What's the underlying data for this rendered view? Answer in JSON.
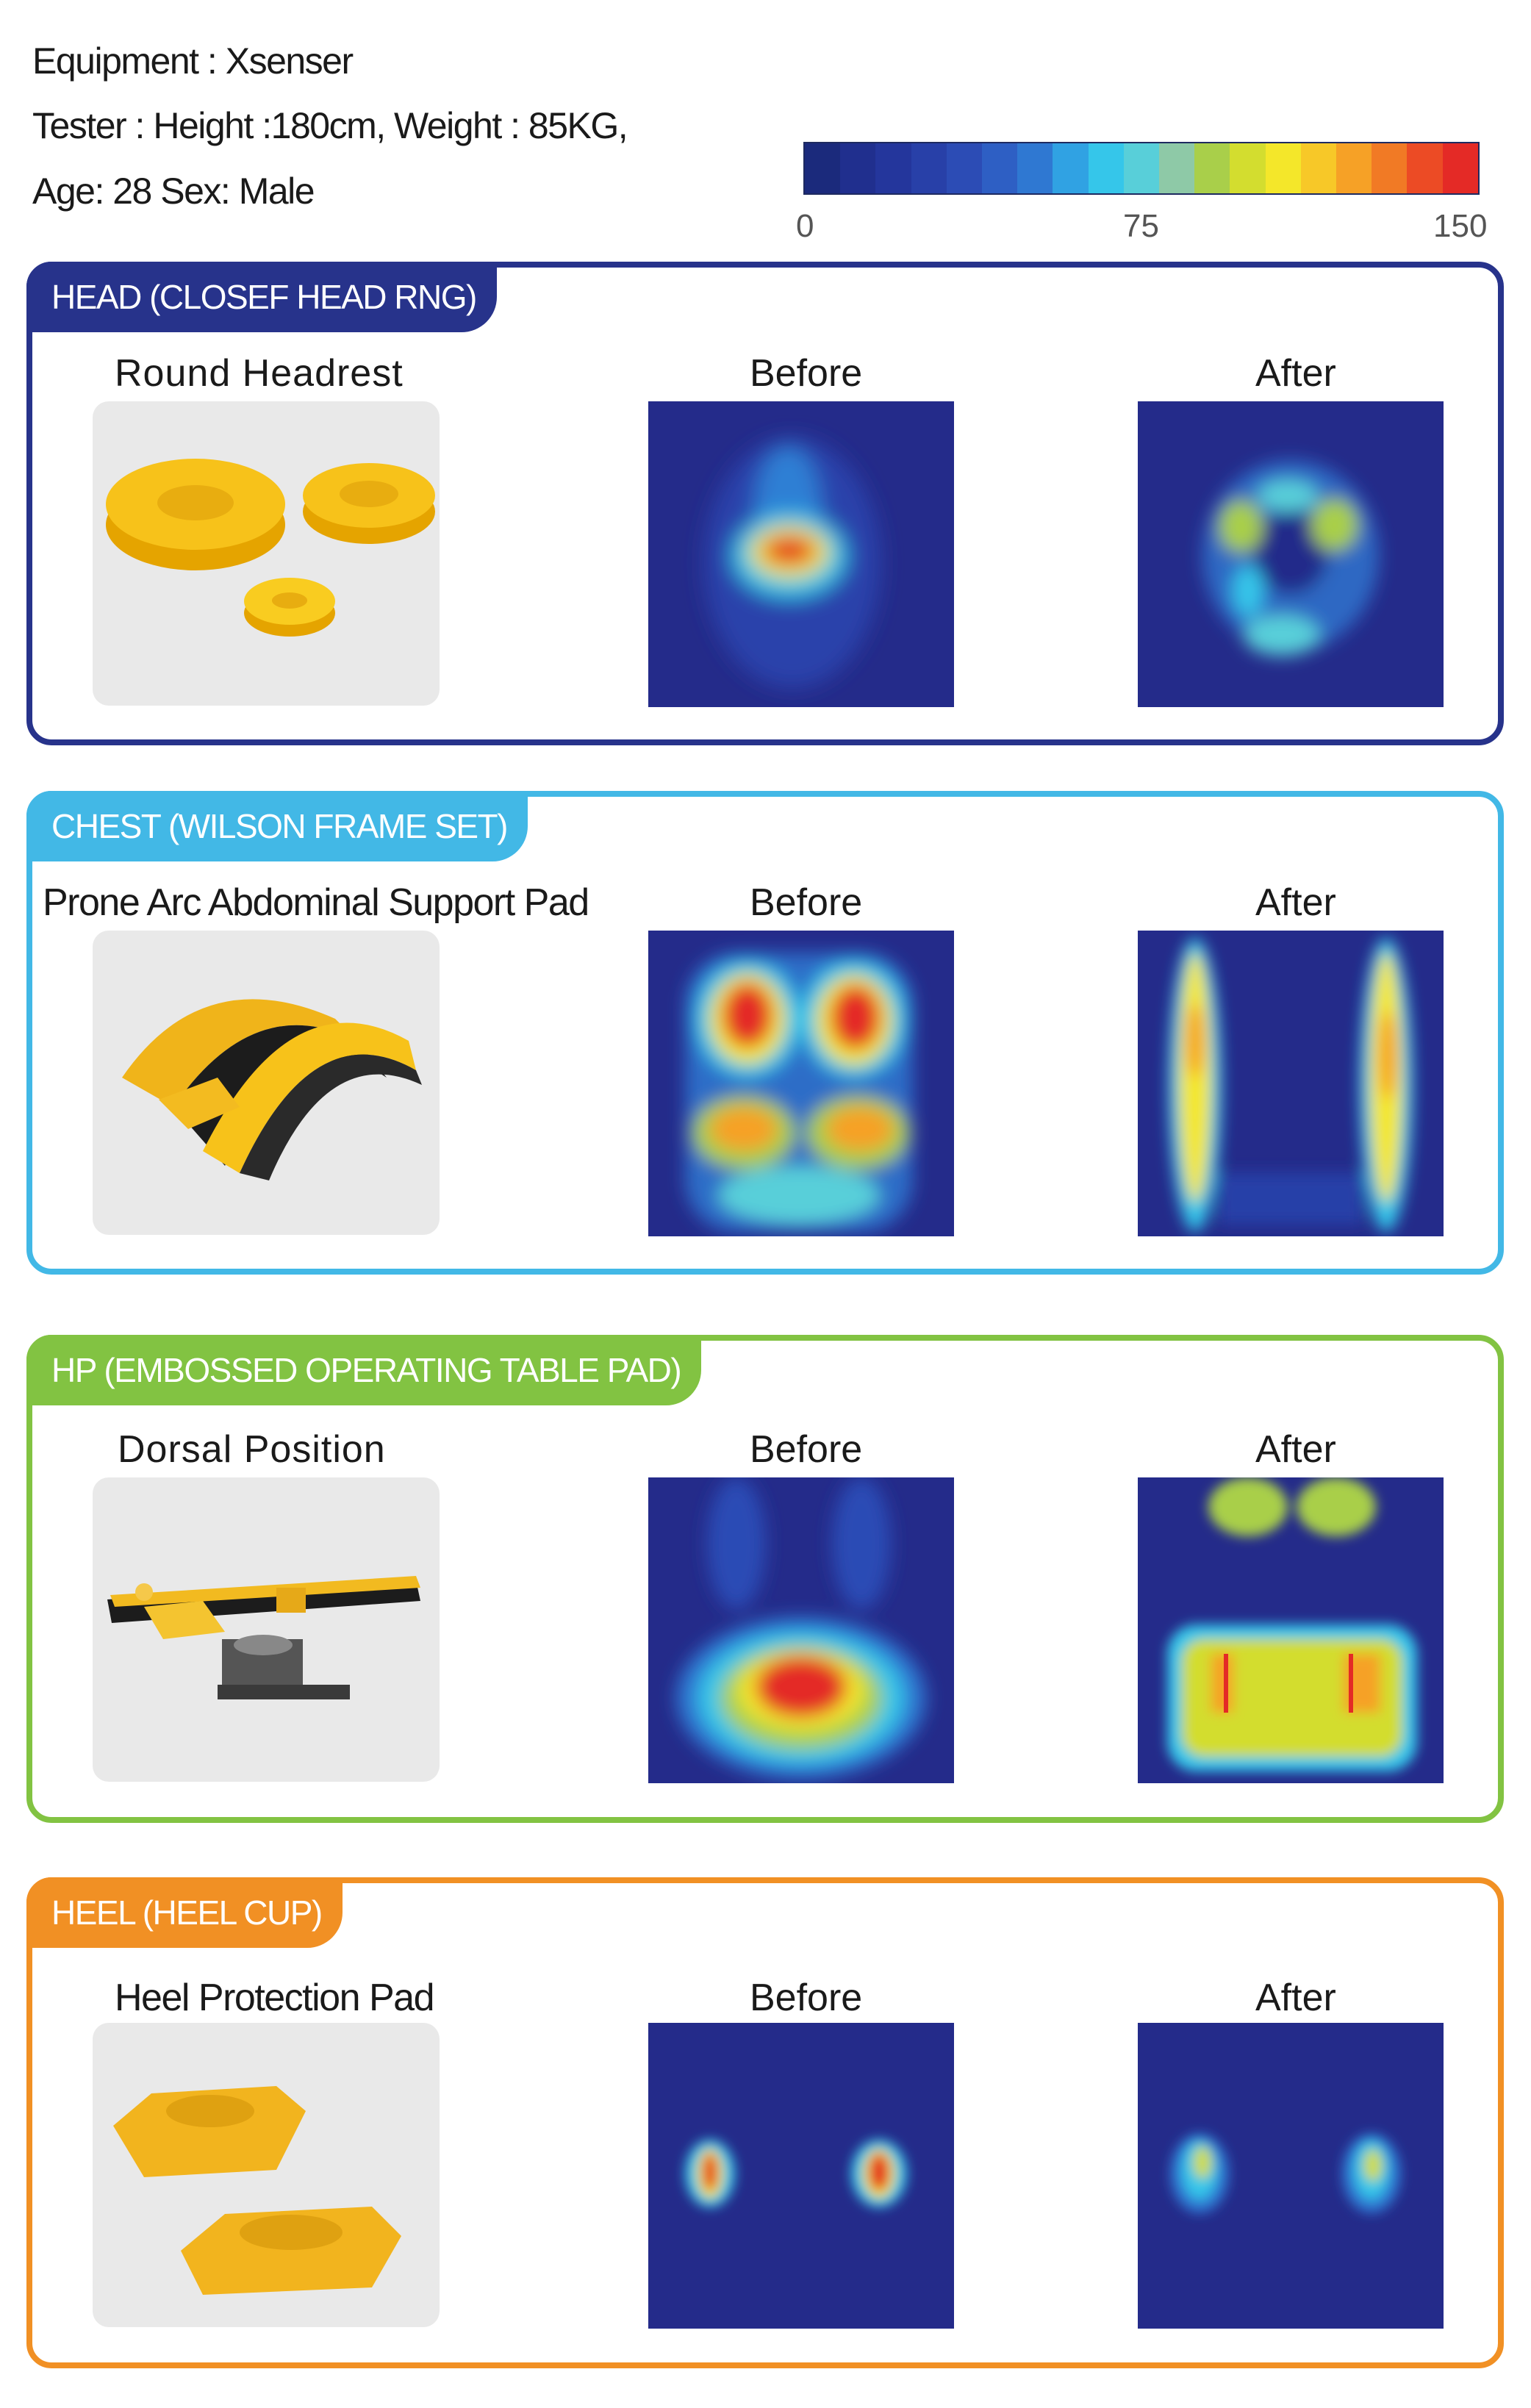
{
  "header": {
    "line1": "Equipment : Xsenser",
    "line2": "Tester : Height :180cm, Weight : 85KG,",
    "line3": "Age: 28 Sex: Male"
  },
  "color_scale": {
    "min_label": "0",
    "mid_label": "75",
    "max_label": "150",
    "colors": [
      "#1b2a7c",
      "#202f8e",
      "#24369c",
      "#2840a8",
      "#2c4cb5",
      "#2e5fc4",
      "#2f78d2",
      "#30a2e3",
      "#35c6ea",
      "#58cfd9",
      "#8ec9a7",
      "#a9cf4a",
      "#d3dd2f",
      "#f4e72a",
      "#f7c828",
      "#f6a126",
      "#f17a25",
      "#ec4b25",
      "#e42a26"
    ]
  },
  "sections": [
    {
      "tab_title": "HEAD (CLOSEF HEAD RNG)",
      "product_label": "Round Headrest",
      "product_image": "round-headrest-gel-rings",
      "before_label": "Before",
      "after_label": "After",
      "color": "#27338b"
    },
    {
      "tab_title": "CHEST (WILSON FRAME SET)",
      "product_label": "Prone Arc Abdominal Support Pad",
      "product_image": "prone-arc-support-pad",
      "before_label": "Before",
      "after_label": "After",
      "color": "#42b8e6"
    },
    {
      "tab_title": "HP (EMBOSSED OPERATING TABLE PAD)",
      "product_label": "Dorsal Position",
      "product_image": "operating-table-with-pad",
      "before_label": "Before",
      "after_label": "After",
      "color": "#82c342"
    },
    {
      "tab_title": "HEEL (HEEL CUP)",
      "product_label": "Heel Protection Pad",
      "product_image": "heel-cup-gel-pads",
      "before_label": "Before",
      "after_label": "After",
      "color": "#f19024"
    }
  ]
}
